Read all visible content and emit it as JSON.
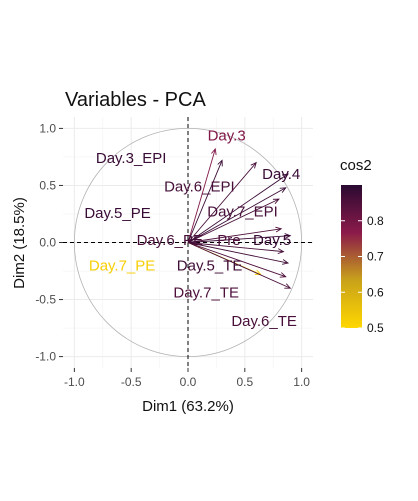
{
  "chart_data": {
    "type": "scatter",
    "title": "Variables - PCA",
    "xlabel": "Dim1 (63.2%)",
    "ylabel": "Dim2 (18.5%)",
    "xlim": [
      -1.1,
      1.1
    ],
    "ylim": [
      -1.1,
      1.1
    ],
    "xticks": [
      -1.0,
      -0.5,
      0.0,
      0.5,
      1.0
    ],
    "yticks": [
      -1.0,
      -0.5,
      0.0,
      0.5,
      1.0
    ],
    "xtick_labels": [
      "-1.0",
      "-0.5",
      "0.0",
      "0.5",
      "1.0"
    ],
    "ytick_labels": [
      "-1.0",
      "-0.5",
      "0.0",
      "0.5",
      "1.0"
    ],
    "grid": true,
    "correlation_circle": true,
    "variables": [
      {
        "name": "Day.3",
        "x": 0.24,
        "y": 0.82,
        "lx": 0.34,
        "ly": 0.94,
        "cos2": 0.78
      },
      {
        "name": "Day.3_EPI",
        "x": 0.3,
        "y": 0.72,
        "lx": -0.5,
        "ly": 0.74,
        "cos2": 0.88
      },
      {
        "name": "Day.4",
        "x": 0.88,
        "y": 0.6,
        "lx": 0.82,
        "ly": 0.6,
        "cos2": 0.88
      },
      {
        "name": "Day.6_EPI",
        "x": 0.6,
        "y": 0.7,
        "lx": 0.1,
        "ly": 0.49,
        "cos2": 0.86
      },
      {
        "name": "Day.7_EPI",
        "x": 0.8,
        "y": 0.38,
        "lx": 0.48,
        "ly": 0.27,
        "cos2": 0.86
      },
      {
        "name": "Day.5_PE",
        "x": 0.86,
        "y": 0.48,
        "lx": -0.62,
        "ly": 0.26,
        "cos2": 0.88
      },
      {
        "name": "Pre",
        "x": 0.82,
        "y": 0.12,
        "lx": 0.36,
        "ly": 0.02,
        "cos2": 0.85
      },
      {
        "name": "Day.5",
        "x": 0.9,
        "y": 0.06,
        "lx": 0.74,
        "ly": 0.02,
        "cos2": 0.88
      },
      {
        "name": "Day.6_PE",
        "x": 0.84,
        "y": -0.08,
        "lx": -0.16,
        "ly": 0.02,
        "cos2": 0.86
      },
      {
        "name": "Day.7_PE",
        "x": 0.64,
        "y": -0.28,
        "lx": -0.58,
        "ly": -0.2,
        "cos2": 0.52
      },
      {
        "name": "Day.5_TE",
        "x": 0.88,
        "y": -0.18,
        "lx": 0.19,
        "ly": -0.2,
        "cos2": 0.87
      },
      {
        "name": "Day.7_TE",
        "x": 0.86,
        "y": -0.3,
        "lx": 0.16,
        "ly": -0.44,
        "cos2": 0.85
      },
      {
        "name": "Day.6_TE",
        "x": 0.9,
        "y": -0.4,
        "lx": 0.67,
        "ly": -0.69,
        "cos2": 0.86
      }
    ],
    "legend": {
      "title": "cos2",
      "placement": "right",
      "range": [
        0.5,
        0.9
      ],
      "ticks": [
        0.5,
        0.6,
        0.7,
        0.8
      ],
      "tick_labels": [
        "0.5",
        "0.6",
        "0.7",
        "0.8"
      ],
      "colors": [
        "#ffd700",
        "#c9a21a",
        "#8b1a4a",
        "#2a0a32"
      ]
    }
  }
}
